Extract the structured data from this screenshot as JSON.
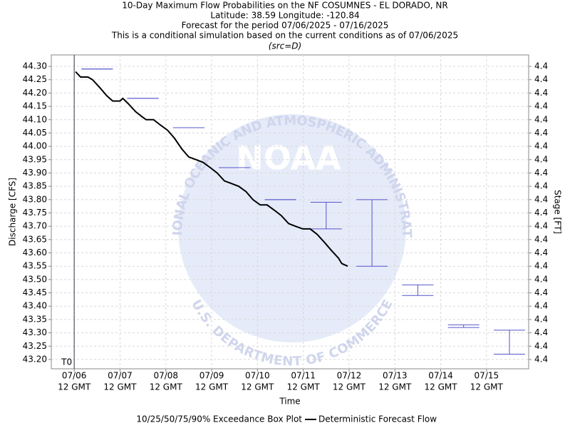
{
  "chart_data": {
    "type": "line",
    "title": [
      "10-Day Maximum Flow Probabilities on the NF COSUMNES - EL DORADO, NR",
      "Latitude: 38.59 Longitude: -120.84",
      "Forecast for the period 07/06/2025 - 07/16/2025",
      "This is a conditional simulation based on the current conditions as of 07/06/2025"
    ],
    "subtitle": "(src=D)",
    "ylabel": "Discharge [CFS]",
    "y2label": "Stage [FT]",
    "xlabel": "Time",
    "ylim": [
      43.165,
      44.343
    ],
    "yticks": [
      {
        "value": 43.2,
        "label": "43.20"
      },
      {
        "value": 43.25,
        "label": "43.25"
      },
      {
        "value": 43.3,
        "label": "43.30"
      },
      {
        "value": 43.35,
        "label": "43.35"
      },
      {
        "value": 43.4,
        "label": "43.40"
      },
      {
        "value": 43.45,
        "label": "43.45"
      },
      {
        "value": 43.5,
        "label": "43.50"
      },
      {
        "value": 43.55,
        "label": "43.55"
      },
      {
        "value": 43.6,
        "label": "43.60"
      },
      {
        "value": 43.65,
        "label": "43.65"
      },
      {
        "value": 43.7,
        "label": "43.70"
      },
      {
        "value": 43.75,
        "label": "43.75"
      },
      {
        "value": 43.8,
        "label": "43.80"
      },
      {
        "value": 43.85,
        "label": "43.85"
      },
      {
        "value": 43.9,
        "label": "43.90"
      },
      {
        "value": 43.95,
        "label": "43.95"
      },
      {
        "value": 44.0,
        "label": "44.00"
      },
      {
        "value": 44.05,
        "label": "44.05"
      },
      {
        "value": 44.1,
        "label": "44.10"
      },
      {
        "value": 44.15,
        "label": "44.15"
      },
      {
        "value": 44.2,
        "label": "44.20"
      },
      {
        "value": 44.25,
        "label": "44.25"
      },
      {
        "value": 44.3,
        "label": "44.30"
      }
    ],
    "y2_tick_labels": [
      "4.4",
      "4.4",
      "4.4",
      "4.4",
      "4.4",
      "4.4",
      "4.4",
      "4.4",
      "4.4",
      "4.4",
      "4.4",
      "4.4",
      "4.4",
      "4.4",
      "4.4",
      "4.4",
      "4.4",
      "4.4",
      "4.4",
      "4.4",
      "4.4",
      "4.4",
      "4.4"
    ],
    "xlim": [
      -0.5,
      9.92
    ],
    "xticks": [
      {
        "value": 0,
        "label": "07/06",
        "sublabel": "12 GMT"
      },
      {
        "value": 1,
        "label": "07/07",
        "sublabel": "12 GMT"
      },
      {
        "value": 2,
        "label": "07/08",
        "sublabel": "12 GMT"
      },
      {
        "value": 3,
        "label": "07/09",
        "sublabel": "12 GMT"
      },
      {
        "value": 4,
        "label": "07/10",
        "sublabel": "12 GMT"
      },
      {
        "value": 5,
        "label": "07/11",
        "sublabel": "12 GMT"
      },
      {
        "value": 6,
        "label": "07/12",
        "sublabel": "12 GMT"
      },
      {
        "value": 7,
        "label": "07/13",
        "sublabel": "12 GMT"
      },
      {
        "value": 8,
        "label": "07/14",
        "sublabel": "12 GMT"
      },
      {
        "value": 9,
        "label": "07/15",
        "sublabel": "12 GMT"
      }
    ],
    "grid": true,
    "t0": {
      "x": 0,
      "label": "T0"
    },
    "boxes": {
      "name": "10/25/50/75/90% Exceedance Box Plot",
      "color": "#5555cc",
      "x": [
        0.5,
        1.5,
        2.5,
        3.5,
        4.5,
        5.5,
        6.5,
        7.5,
        8.5,
        9.5
      ],
      "low": [
        44.29,
        44.18,
        44.07,
        43.92,
        43.8,
        43.69,
        43.55,
        43.44,
        43.32,
        43.22
      ],
      "high": [
        44.29,
        44.18,
        44.07,
        43.92,
        43.8,
        43.79,
        43.8,
        43.48,
        43.33,
        43.31
      ]
    },
    "series": [
      {
        "name": "Deterministic Forecast Flow",
        "color": "#000000",
        "x": [
          0.03,
          0.14,
          0.3,
          0.4,
          0.56,
          0.71,
          0.84,
          1.0,
          1.06,
          1.18,
          1.34,
          1.49,
          1.57,
          1.73,
          1.88,
          2.04,
          2.19,
          2.35,
          2.5,
          2.66,
          2.81,
          2.97,
          3.12,
          3.28,
          3.44,
          3.59,
          3.75,
          3.9,
          4.06,
          4.21,
          4.37,
          4.52,
          4.68,
          4.83,
          4.99,
          5.15,
          5.3,
          5.46,
          5.61,
          5.77,
          5.84,
          5.97
        ],
        "values": [
          44.28,
          44.26,
          44.26,
          44.25,
          44.22,
          44.19,
          44.17,
          44.17,
          44.18,
          44.16,
          44.13,
          44.11,
          44.1,
          44.1,
          44.08,
          44.06,
          44.03,
          43.99,
          43.96,
          43.95,
          43.94,
          43.92,
          43.9,
          43.87,
          43.86,
          43.85,
          43.83,
          43.8,
          43.78,
          43.78,
          43.76,
          43.74,
          43.71,
          43.7,
          43.69,
          43.69,
          43.67,
          43.64,
          43.61,
          43.58,
          43.56,
          43.55
        ]
      }
    ],
    "watermark": {
      "center": "NOAA",
      "top": "NATIONAL OCEANIC AND ATMOSPHERIC ADMINISTRATION",
      "bottom": "U.S. DEPARTMENT OF COMMERCE"
    }
  }
}
